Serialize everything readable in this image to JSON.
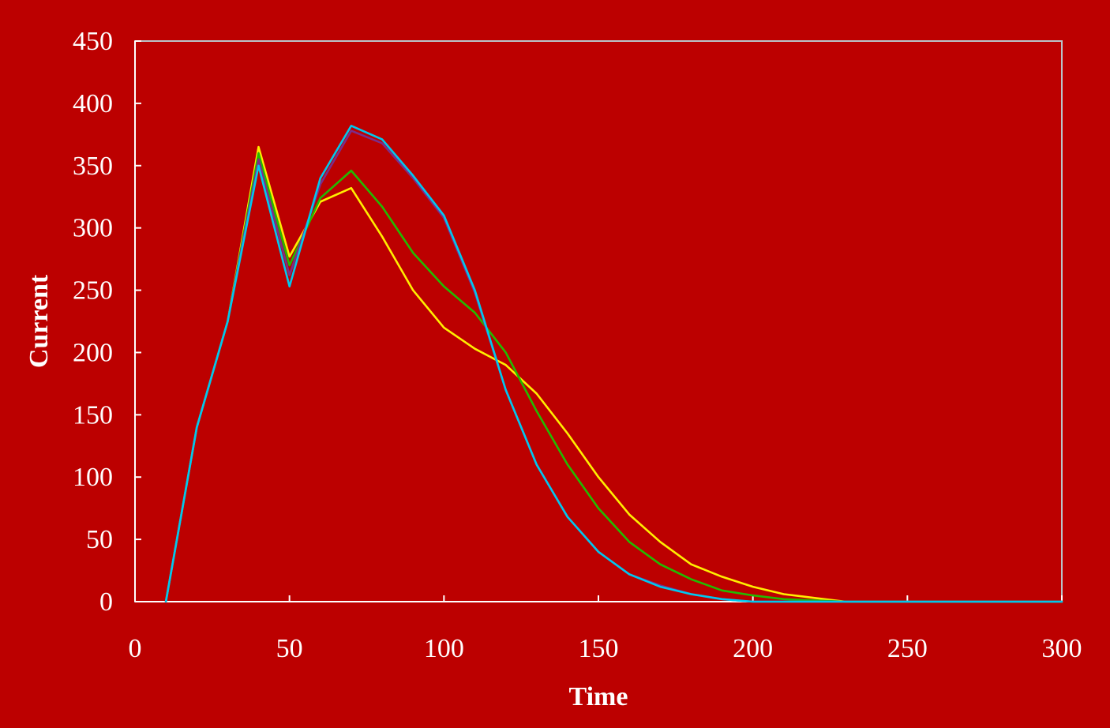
{
  "chart_data": {
    "type": "line",
    "title": "",
    "xlabel": "Time",
    "ylabel": "Current",
    "xlim": [
      0,
      300
    ],
    "ylim": [
      0,
      450
    ],
    "xticks": [
      0,
      50,
      100,
      150,
      200,
      250,
      300
    ],
    "yticks": [
      0,
      50,
      100,
      150,
      200,
      250,
      300,
      350,
      400,
      450
    ],
    "grid": false,
    "legend": "none",
    "colors": {
      "background": "#bc0000",
      "plot_border": "#b9c4c9",
      "text": "#ffffff"
    },
    "series": [
      {
        "color": "#ffee00",
        "x": [
          10,
          20,
          30,
          40,
          50,
          60,
          70,
          80,
          90,
          100,
          110,
          120,
          130,
          140,
          150,
          160,
          170,
          180,
          190,
          200,
          210,
          220,
          230,
          240,
          250,
          260,
          270,
          280,
          290,
          300
        ],
        "y": [
          0,
          140,
          225,
          365,
          277,
          321,
          332,
          293,
          250,
          220,
          203,
          190,
          167,
          135,
          100,
          70,
          48,
          30,
          20,
          12,
          6,
          3,
          0,
          0,
          0,
          0,
          0,
          0,
          0,
          0
        ]
      },
      {
        "color": "#22bb00",
        "x": [
          10,
          20,
          30,
          40,
          50,
          60,
          70,
          80,
          90,
          100,
          110,
          120,
          130,
          140,
          150,
          160,
          170,
          180,
          190,
          200,
          210,
          220,
          230,
          240,
          250,
          260,
          270,
          280,
          290,
          300
        ],
        "y": [
          0,
          140,
          225,
          360,
          270,
          324,
          346,
          317,
          280,
          253,
          232,
          200,
          153,
          110,
          75,
          48,
          30,
          18,
          9,
          5,
          2,
          1,
          0,
          0,
          0,
          0,
          0,
          0,
          0,
          0
        ]
      },
      {
        "color": "#7b2d8b",
        "x": [
          10,
          20,
          30,
          40,
          50,
          60,
          70,
          80,
          90,
          100,
          110,
          120,
          130,
          140,
          150,
          160,
          170,
          180,
          190,
          200,
          210,
          220,
          230,
          240,
          250,
          260,
          270,
          280,
          290,
          300
        ],
        "y": [
          0,
          140,
          225,
          355,
          262,
          335,
          378,
          368,
          340,
          308,
          248,
          170,
          110,
          68,
          40,
          22,
          13,
          6,
          2,
          0,
          0,
          0,
          0,
          0,
          0,
          0,
          0,
          0,
          0,
          0
        ]
      },
      {
        "color": "#00c8ee",
        "x": [
          10,
          20,
          30,
          40,
          50,
          60,
          70,
          80,
          90,
          100,
          110,
          120,
          130,
          140,
          150,
          160,
          170,
          180,
          190,
          200,
          210,
          220,
          230,
          240,
          250,
          260,
          270,
          280,
          290,
          300
        ],
        "y": [
          0,
          140,
          225,
          350,
          253,
          340,
          382,
          371,
          342,
          310,
          250,
          170,
          110,
          68,
          40,
          22,
          12,
          6,
          2,
          0,
          0,
          0,
          0,
          0,
          0,
          0,
          0,
          0,
          0,
          0
        ]
      }
    ]
  }
}
